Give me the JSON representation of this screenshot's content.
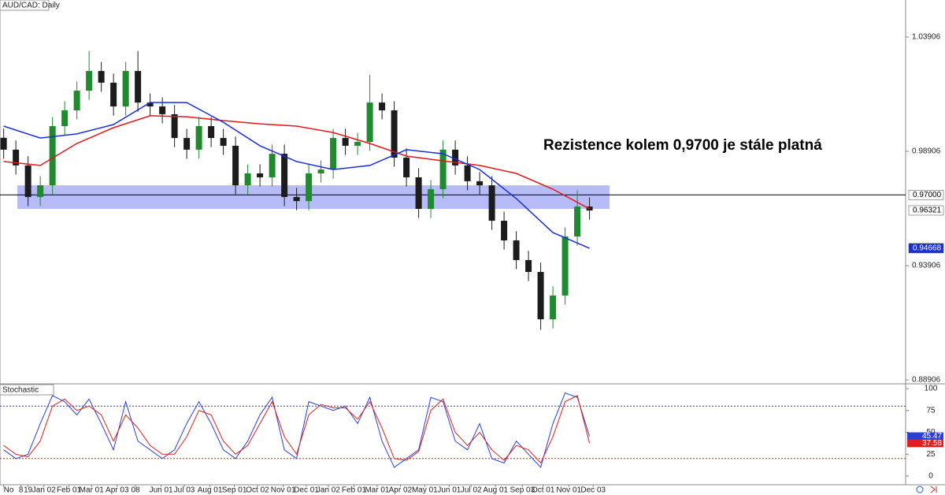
{
  "chart_data": [
    {
      "type": "candlestick",
      "title": "AUD/CAD: Daily",
      "annotation": "Rezistence kolem 0,9700 je stále platná",
      "xlim": [
        -0.3,
        73.9
      ],
      "ylim": [
        0.88734,
        1.05527
      ],
      "yticks": [
        1.03906,
        0.98906,
        0.93906,
        0.88906
      ],
      "up_color": "#1f8a2e",
      "down_color": "#1c1c1c",
      "open": [
        0.995,
        0.9898,
        0.9829,
        0.9691,
        0.9742,
        1.0001,
        1.007,
        1.0156,
        1.0242,
        1.0191,
        1.0087,
        1.0242,
        1.0104,
        1.0087,
        1.0053,
        0.9949,
        0.9898,
        1.0001,
        0.9949,
        0.9915,
        0.9742,
        0.9794,
        0.9777,
        0.988,
        0.9691,
        0.9673,
        0.9794,
        0.9811,
        0.9949,
        0.9915,
        0.9932,
        1.0104,
        1.007,
        0.9863,
        0.9777,
        0.9639,
        0.9725,
        0.9898,
        0.9829,
        0.976,
        0.9742,
        0.9587,
        0.9501,
        0.9415,
        0.9363,
        0.9156,
        0.926,
        0.9518,
        0.9649
      ],
      "high": [
        0.999,
        0.9938,
        0.9869,
        0.9782,
        1.0041,
        1.011,
        1.0196,
        1.033,
        1.0282,
        1.0231,
        1.0282,
        1.033,
        1.0144,
        1.0127,
        1.0093,
        0.9989,
        1.0041,
        1.0041,
        0.9989,
        0.9955,
        0.9834,
        0.9834,
        0.992,
        0.992,
        0.9731,
        0.9834,
        0.9851,
        0.9989,
        0.9989,
        0.9972,
        1.0225,
        1.0144,
        1.011,
        0.9903,
        0.9817,
        0.9765,
        0.9938,
        0.9938,
        0.9869,
        0.98,
        0.9782,
        0.9627,
        0.9541,
        0.9455,
        0.9403,
        0.93,
        0.9558,
        0.972,
        0.9689
      ],
      "low": [
        0.9858,
        0.9789,
        0.9651,
        0.9651,
        0.9702,
        0.9961,
        1.003,
        1.0116,
        1.0151,
        1.0047,
        1.0047,
        1.0064,
        1.0047,
        1.0013,
        0.9909,
        0.9858,
        0.9858,
        0.9909,
        0.9875,
        0.9702,
        0.9702,
        0.9737,
        0.9737,
        0.9651,
        0.9633,
        0.9633,
        0.9754,
        0.9771,
        0.9875,
        0.9875,
        0.9892,
        1.003,
        0.9823,
        0.9737,
        0.9599,
        0.9599,
        0.9685,
        0.9789,
        0.972,
        0.9702,
        0.9547,
        0.9461,
        0.9375,
        0.9323,
        0.911,
        0.9116,
        0.922,
        0.9478,
        0.9592
      ],
      "close": [
        0.9898,
        0.9829,
        0.9691,
        0.9742,
        1.0001,
        1.007,
        1.0156,
        1.0242,
        1.0191,
        1.0087,
        1.0242,
        1.0104,
        1.0087,
        1.0053,
        0.9949,
        0.9898,
        1.0001,
        0.9949,
        0.9915,
        0.9742,
        0.9794,
        0.9777,
        0.988,
        0.9691,
        0.9673,
        0.9794,
        0.9811,
        0.9949,
        0.9915,
        0.9932,
        1.0104,
        1.007,
        0.9863,
        0.9777,
        0.9639,
        0.9725,
        0.9898,
        0.9829,
        0.976,
        0.9742,
        0.9587,
        0.9501,
        0.9415,
        0.9363,
        0.9156,
        0.926,
        0.9518,
        0.9649,
        0.96321
      ],
      "series": [
        {
          "color": "#e01818",
          "x": [
            0,
            3,
            6,
            9,
            12,
            15,
            18,
            21,
            24,
            27,
            30,
            33,
            36,
            39,
            42,
            45,
            48
          ],
          "values": [
            0.9846,
            0.9829,
            0.9925,
            0.9994,
            1.0046,
            1.0042,
            1.0025,
            1.0011,
            1.0001,
            0.9973,
            0.9925,
            0.987,
            0.9849,
            0.9829,
            0.9794,
            0.9725,
            0.9639
          ]
        },
        {
          "color": "#1a2fd6",
          "x": [
            0,
            3,
            6,
            9,
            12,
            15,
            18,
            21,
            24,
            27,
            30,
            33,
            36,
            39,
            42,
            45,
            48
          ],
          "values": [
            1.0001,
            0.9949,
            0.9967,
            1.0008,
            1.0104,
            1.0104,
            1.0018,
            0.9915,
            0.9846,
            0.9811,
            0.9829,
            0.9898,
            0.988,
            0.9811,
            0.9684,
            0.9535,
            0.94668
          ]
        }
      ],
      "hline": {
        "value": 0.97,
        "label": "0.97000"
      },
      "zone": [
        0.9639,
        0.9742
      ],
      "zone_color": "#aab0f7"
    },
    {
      "type": "line",
      "title": "Stochastic",
      "xlim": [
        -0.3,
        73.9
      ],
      "ylim": [
        -9.9,
        105.4
      ],
      "yticks": [
        0,
        25,
        50,
        75,
        100
      ],
      "levels": [
        {
          "value": 80,
          "color": "#3333cc"
        },
        {
          "value": 20,
          "color": "#d42020"
        }
      ],
      "xticks": [
        {
          "value": 0,
          "label": "No"
        },
        {
          "value": 1.42,
          "label": "8"
        },
        {
          "value": 2,
          "label": "19"
        },
        {
          "value": 3.3,
          "label": "Jan 02"
        },
        {
          "value": 5.35,
          "label": "Feb 01"
        },
        {
          "value": 7.2,
          "label": "Mar 01"
        },
        {
          "value": 9.3,
          "label": "Apr 03"
        },
        {
          "value": 10.8,
          "label": "08"
        },
        {
          "value": 12.9,
          "label": "Jun 01"
        },
        {
          "value": 14.8,
          "label": "Jul 03"
        },
        {
          "value": 16.9,
          "label": "Aug 01"
        },
        {
          "value": 18.9,
          "label": "Sep 01"
        },
        {
          "value": 20.8,
          "label": "Oct 02"
        },
        {
          "value": 22.9,
          "label": "Nov 01"
        },
        {
          "value": 24.8,
          "label": "Dec 01"
        },
        {
          "value": 26.6,
          "label": "Jan 02"
        },
        {
          "value": 28.7,
          "label": "Feb 01"
        },
        {
          "value": 30.6,
          "label": "Mar 01"
        },
        {
          "value": 32.5,
          "label": "Apr 02"
        },
        {
          "value": 34.5,
          "label": "May 01"
        },
        {
          "value": 36.5,
          "label": "Jun 01"
        },
        {
          "value": 38.3,
          "label": "Jul 02"
        },
        {
          "value": 40.3,
          "label": "Aug 01"
        },
        {
          "value": 42.5,
          "label": "Sep 03"
        },
        {
          "value": 44.2,
          "label": "Oct 01"
        },
        {
          "value": 46.3,
          "label": "Nov 01"
        },
        {
          "value": 48.3,
          "label": "Dec 03"
        }
      ],
      "series": [
        {
          "color": "#2a3fd8",
          "values": [
            30,
            20,
            25,
            60,
            92,
            85,
            70,
            88,
            60,
            30,
            85,
            40,
            30,
            20,
            30,
            60,
            85,
            60,
            30,
            20,
            40,
            70,
            90,
            30,
            20,
            85,
            80,
            75,
            80,
            60,
            90,
            40,
            10,
            20,
            30,
            90,
            85,
            40,
            30,
            60,
            20,
            15,
            40,
            25,
            10,
            60,
            95,
            90,
            45.47
          ]
        },
        {
          "color": "#e02020",
          "values": [
            35,
            25,
            22,
            40,
            80,
            88,
            75,
            80,
            70,
            40,
            70,
            55,
            35,
            25,
            25,
            45,
            75,
            70,
            40,
            25,
            35,
            60,
            85,
            45,
            25,
            70,
            82,
            78,
            78,
            65,
            85,
            55,
            20,
            18,
            28,
            75,
            88,
            50,
            35,
            50,
            30,
            18,
            35,
            30,
            15,
            45,
            85,
            92,
            37.58
          ]
        }
      ]
    }
  ]
}
